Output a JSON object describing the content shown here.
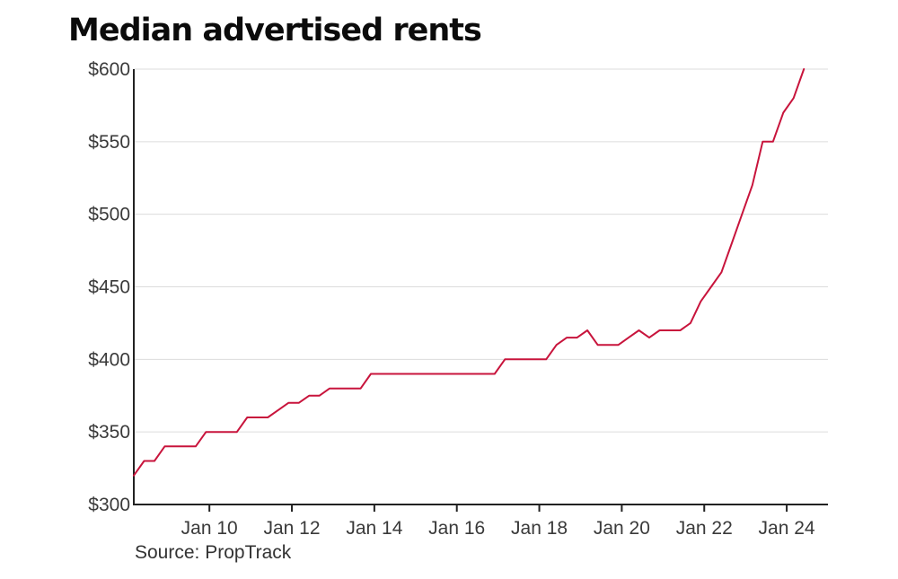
{
  "chart_data": {
    "type": "line",
    "title": "Median advertised rents",
    "source": "Source: PropTrack",
    "xlabel": "",
    "ylabel": "",
    "grid": true,
    "line_color": "#C8143C",
    "y_ticks": [
      300,
      350,
      400,
      450,
      500,
      550,
      600
    ],
    "y_tick_labels": [
      "$300",
      "$350",
      "$400",
      "$450",
      "$500",
      "$550",
      "$600"
    ],
    "ylim": [
      300,
      600
    ],
    "x_ticks": [
      "2010-01",
      "2012-01",
      "2014-01",
      "2016-01",
      "2018-01",
      "2020-01",
      "2022-01",
      "2024-01"
    ],
    "x_tick_labels": [
      "Jan 10",
      "Jan 12",
      "Jan 14",
      "Jan 16",
      "Jan 18",
      "Jan 20",
      "Jan 22",
      "Jan 24"
    ],
    "xlim": [
      "2008-03",
      "2025-01"
    ],
    "series": [
      {
        "x": [
          "2008-03",
          "2008-06",
          "2008-09",
          "2008-12",
          "2009-03",
          "2009-06",
          "2009-09",
          "2009-12",
          "2010-03",
          "2010-06",
          "2010-09",
          "2010-12",
          "2011-03",
          "2011-06",
          "2011-09",
          "2011-12",
          "2012-03",
          "2012-06",
          "2012-09",
          "2012-12",
          "2013-03",
          "2013-06",
          "2013-09",
          "2013-12",
          "2014-03",
          "2014-06",
          "2014-09",
          "2014-12",
          "2015-03",
          "2015-06",
          "2015-09",
          "2015-12",
          "2016-03",
          "2016-06",
          "2016-09",
          "2016-12",
          "2017-03",
          "2017-06",
          "2017-09",
          "2017-12",
          "2018-03",
          "2018-06",
          "2018-09",
          "2018-12",
          "2019-03",
          "2019-06",
          "2019-09",
          "2019-12",
          "2020-03",
          "2020-06",
          "2020-09",
          "2020-12",
          "2021-03",
          "2021-06",
          "2021-09",
          "2021-12",
          "2022-03",
          "2022-06",
          "2022-09",
          "2022-12",
          "2023-03",
          "2023-06",
          "2023-09",
          "2023-12",
          "2024-03"
        ],
        "values": [
          320,
          330,
          330,
          340,
          340,
          340,
          340,
          350,
          350,
          350,
          350,
          360,
          360,
          360,
          365,
          370,
          370,
          375,
          375,
          380,
          380,
          380,
          380,
          390,
          390,
          390,
          390,
          390,
          390,
          390,
          390,
          390,
          390,
          390,
          390,
          390,
          400,
          400,
          400,
          400,
          400,
          410,
          415,
          415,
          420,
          410,
          410,
          410,
          415,
          420,
          415,
          420,
          420,
          420,
          425,
          440,
          450,
          460,
          480,
          500,
          520,
          550,
          550,
          570,
          580
        ]
      },
      {
        "x": [
          "2024-06"
        ],
        "values": [
          600
        ]
      }
    ]
  }
}
